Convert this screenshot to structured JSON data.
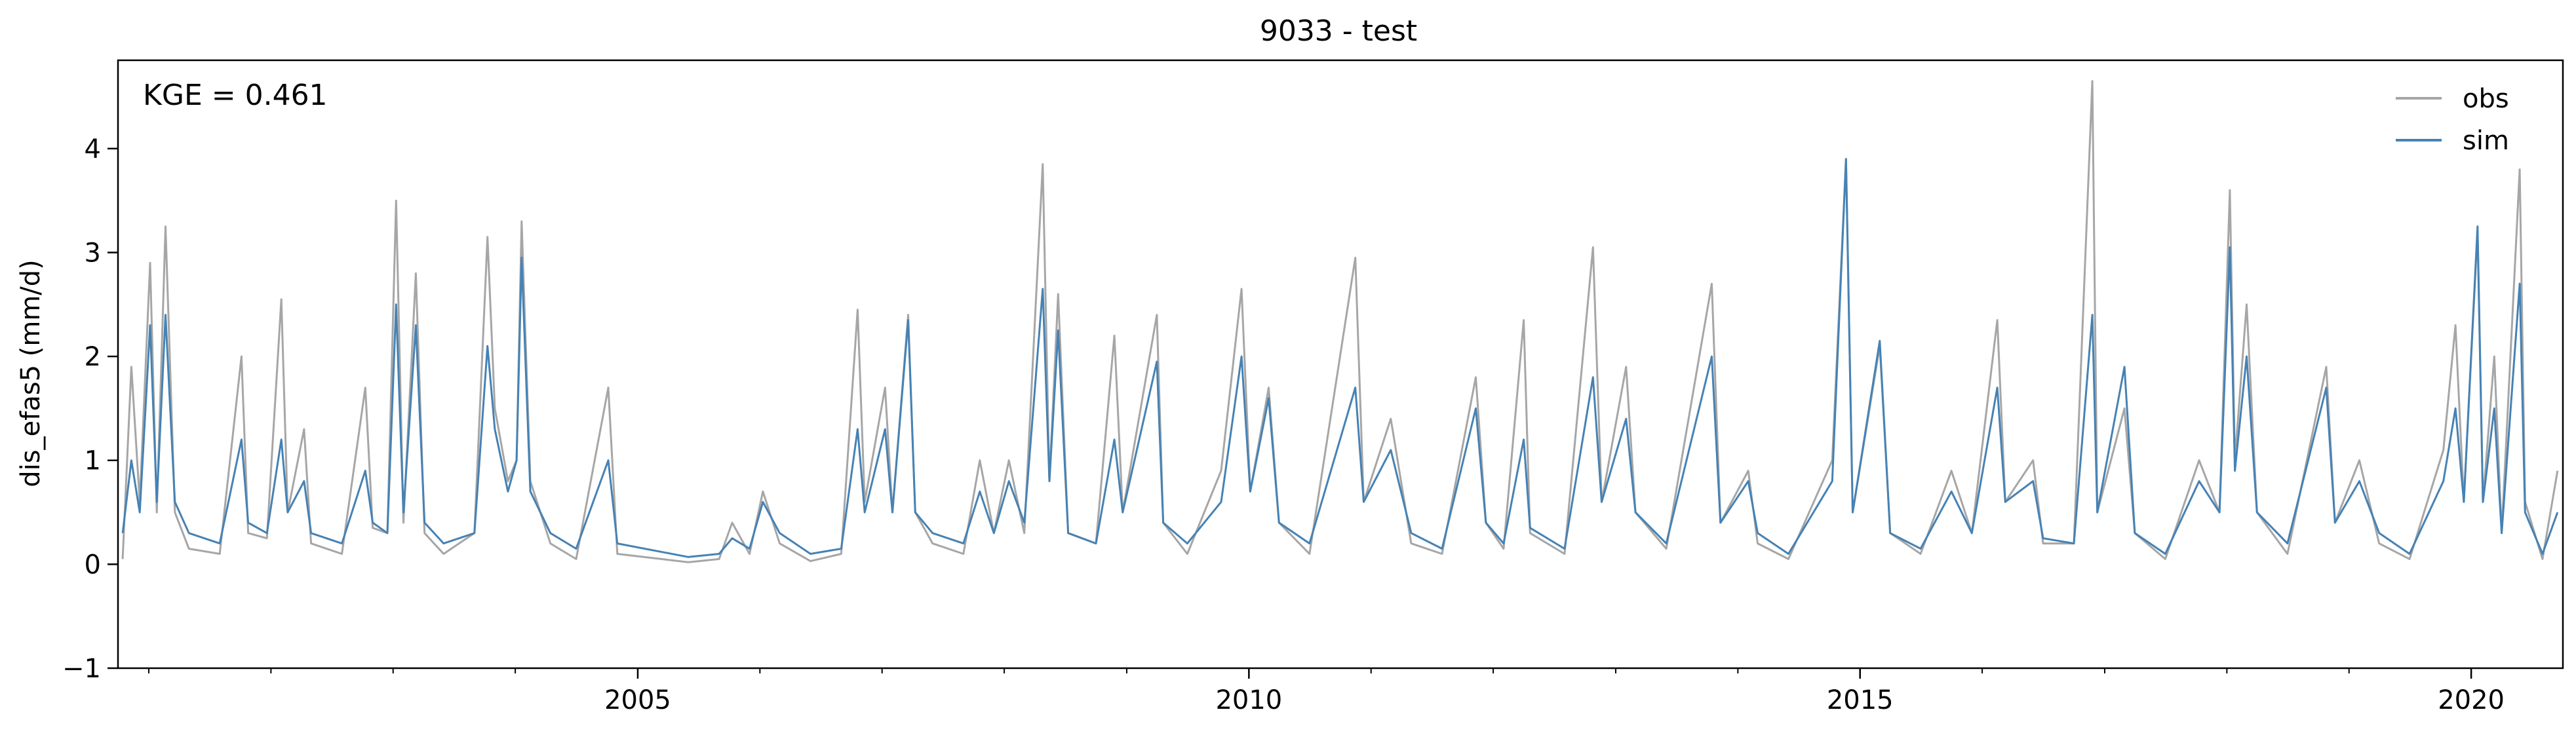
{
  "chart_data": {
    "type": "line",
    "title": "9033 - test",
    "xlabel": "",
    "ylabel": "dis_efas5 (mm/d)",
    "annotation": "KGE = 0.461",
    "xlim": [
      "2000-10-01",
      "2020-10-01"
    ],
    "ylim": [
      -1,
      4.85
    ],
    "x_ticks": [
      {
        "date": "2005-01-01",
        "label": "2005"
      },
      {
        "date": "2010-01-01",
        "label": "2010"
      },
      {
        "date": "2015-01-01",
        "label": "2015"
      },
      {
        "date": "2020-01-01",
        "label": "2020"
      }
    ],
    "y_ticks": [
      {
        "value": -1,
        "label": "−1"
      },
      {
        "value": 0,
        "label": "0"
      },
      {
        "value": 1,
        "label": "1"
      },
      {
        "value": 2,
        "label": "2"
      },
      {
        "value": 3,
        "label": "3"
      },
      {
        "value": 4,
        "label": "4"
      }
    ],
    "legend": {
      "position": "top-right"
    },
    "grid": false,
    "series": [
      {
        "name": "obs",
        "color": "#a6a6a6",
        "points": [
          [
            "2000-10-15",
            0.05
          ],
          [
            "2000-11-10",
            1.9
          ],
          [
            "2000-12-05",
            0.6
          ],
          [
            "2001-01-05",
            2.9
          ],
          [
            "2001-01-25",
            0.5
          ],
          [
            "2001-02-20",
            3.25
          ],
          [
            "2001-03-20",
            0.5
          ],
          [
            "2001-05-01",
            0.15
          ],
          [
            "2001-08-01",
            0.1
          ],
          [
            "2001-10-05",
            2.0
          ],
          [
            "2001-10-25",
            0.3
          ],
          [
            "2001-12-20",
            0.25
          ],
          [
            "2002-02-01",
            2.55
          ],
          [
            "2002-02-20",
            0.5
          ],
          [
            "2002-04-10",
            1.3
          ],
          [
            "2002-05-01",
            0.2
          ],
          [
            "2002-08-01",
            0.1
          ],
          [
            "2002-10-10",
            1.7
          ],
          [
            "2002-11-01",
            0.35
          ],
          [
            "2002-12-15",
            0.3
          ],
          [
            "2003-01-10",
            3.5
          ],
          [
            "2003-02-01",
            0.4
          ],
          [
            "2003-03-10",
            2.8
          ],
          [
            "2003-04-05",
            0.3
          ],
          [
            "2003-06-01",
            0.1
          ],
          [
            "2003-09-01",
            0.3
          ],
          [
            "2003-10-10",
            3.15
          ],
          [
            "2003-11-01",
            1.5
          ],
          [
            "2003-12-10",
            0.8
          ],
          [
            "2004-01-05",
            1.0
          ],
          [
            "2004-01-20",
            3.3
          ],
          [
            "2004-02-15",
            0.8
          ],
          [
            "2004-04-15",
            0.2
          ],
          [
            "2004-07-01",
            0.05
          ],
          [
            "2004-10-05",
            1.7
          ],
          [
            "2004-11-01",
            0.1
          ],
          [
            "2005-06-01",
            0.02
          ],
          [
            "2005-09-01",
            0.05
          ],
          [
            "2005-10-10",
            0.4
          ],
          [
            "2005-12-01",
            0.1
          ],
          [
            "2006-01-10",
            0.7
          ],
          [
            "2006-03-01",
            0.2
          ],
          [
            "2006-06-01",
            0.03
          ],
          [
            "2006-09-01",
            0.1
          ],
          [
            "2006-10-20",
            2.45
          ],
          [
            "2006-11-10",
            0.6
          ],
          [
            "2007-01-10",
            1.7
          ],
          [
            "2007-02-01",
            0.5
          ],
          [
            "2007-03-20",
            2.4
          ],
          [
            "2007-04-10",
            0.5
          ],
          [
            "2007-06-01",
            0.2
          ],
          [
            "2007-09-01",
            0.1
          ],
          [
            "2007-10-20",
            1.0
          ],
          [
            "2007-12-01",
            0.3
          ],
          [
            "2008-01-15",
            1.0
          ],
          [
            "2008-03-01",
            0.3
          ],
          [
            "2008-04-25",
            3.85
          ],
          [
            "2008-05-15",
            0.8
          ],
          [
            "2008-06-10",
            2.6
          ],
          [
            "2008-07-10",
            0.3
          ],
          [
            "2008-10-01",
            0.2
          ],
          [
            "2008-11-25",
            2.2
          ],
          [
            "2008-12-20",
            0.5
          ],
          [
            "2009-04-01",
            2.4
          ],
          [
            "2009-04-20",
            0.4
          ],
          [
            "2009-07-01",
            0.1
          ],
          [
            "2009-10-10",
            0.9
          ],
          [
            "2009-12-10",
            2.65
          ],
          [
            "2010-01-05",
            0.7
          ],
          [
            "2010-03-01",
            1.7
          ],
          [
            "2010-04-01",
            0.4
          ],
          [
            "2010-07-01",
            0.1
          ],
          [
            "2010-11-15",
            2.95
          ],
          [
            "2010-12-10",
            0.6
          ],
          [
            "2011-03-01",
            1.4
          ],
          [
            "2011-05-01",
            0.2
          ],
          [
            "2011-08-01",
            0.1
          ],
          [
            "2011-11-10",
            1.8
          ],
          [
            "2011-12-10",
            0.4
          ],
          [
            "2012-02-01",
            0.15
          ],
          [
            "2012-04-01",
            2.35
          ],
          [
            "2012-04-20",
            0.3
          ],
          [
            "2012-08-01",
            0.1
          ],
          [
            "2012-10-25",
            3.05
          ],
          [
            "2012-11-20",
            0.6
          ],
          [
            "2013-02-01",
            1.9
          ],
          [
            "2013-03-01",
            0.5
          ],
          [
            "2013-06-01",
            0.15
          ],
          [
            "2013-10-15",
            2.7
          ],
          [
            "2013-11-10",
            0.4
          ],
          [
            "2014-02-01",
            0.9
          ],
          [
            "2014-03-01",
            0.2
          ],
          [
            "2014-06-01",
            0.05
          ],
          [
            "2014-10-10",
            1.0
          ],
          [
            "2014-11-20",
            3.9
          ],
          [
            "2014-12-10",
            0.5
          ],
          [
            "2015-03-01",
            2.1
          ],
          [
            "2015-04-01",
            0.3
          ],
          [
            "2015-07-01",
            0.1
          ],
          [
            "2015-10-01",
            0.9
          ],
          [
            "2015-12-01",
            0.3
          ],
          [
            "2016-02-15",
            2.35
          ],
          [
            "2016-03-10",
            0.6
          ],
          [
            "2016-06-01",
            1.0
          ],
          [
            "2016-07-01",
            0.2
          ],
          [
            "2016-10-01",
            0.2
          ],
          [
            "2016-11-25",
            4.65
          ],
          [
            "2016-12-10",
            0.5
          ],
          [
            "2017-03-01",
            1.5
          ],
          [
            "2017-04-01",
            0.3
          ],
          [
            "2017-07-01",
            0.05
          ],
          [
            "2017-10-10",
            1.0
          ],
          [
            "2017-12-10",
            0.5
          ],
          [
            "2018-01-10",
            3.6
          ],
          [
            "2018-01-25",
            1.0
          ],
          [
            "2018-03-01",
            2.5
          ],
          [
            "2018-04-01",
            0.5
          ],
          [
            "2018-07-01",
            0.1
          ],
          [
            "2018-10-25",
            1.9
          ],
          [
            "2018-11-20",
            0.4
          ],
          [
            "2019-02-01",
            1.0
          ],
          [
            "2019-04-01",
            0.2
          ],
          [
            "2019-07-01",
            0.05
          ],
          [
            "2019-10-10",
            1.1
          ],
          [
            "2019-11-15",
            2.3
          ],
          [
            "2019-12-10",
            0.6
          ],
          [
            "2020-01-20",
            3.2
          ],
          [
            "2020-02-05",
            0.6
          ],
          [
            "2020-03-10",
            2.0
          ],
          [
            "2020-04-01",
            0.3
          ],
          [
            "2020-05-25",
            3.8
          ],
          [
            "2020-06-10",
            0.6
          ],
          [
            "2020-08-01",
            0.05
          ],
          [
            "2020-09-15",
            0.9
          ]
        ]
      },
      {
        "name": "sim",
        "color": "#4682b4",
        "points": [
          [
            "2000-10-15",
            0.3
          ],
          [
            "2000-11-10",
            1.0
          ],
          [
            "2000-12-05",
            0.5
          ],
          [
            "2001-01-05",
            2.3
          ],
          [
            "2001-01-25",
            0.6
          ],
          [
            "2001-02-20",
            2.4
          ],
          [
            "2001-03-20",
            0.6
          ],
          [
            "2001-05-01",
            0.3
          ],
          [
            "2001-08-01",
            0.2
          ],
          [
            "2001-10-05",
            1.2
          ],
          [
            "2001-10-25",
            0.4
          ],
          [
            "2001-12-20",
            0.3
          ],
          [
            "2002-02-01",
            1.2
          ],
          [
            "2002-02-20",
            0.5
          ],
          [
            "2002-04-10",
            0.8
          ],
          [
            "2002-05-01",
            0.3
          ],
          [
            "2002-08-01",
            0.2
          ],
          [
            "2002-10-10",
            0.9
          ],
          [
            "2002-11-01",
            0.4
          ],
          [
            "2002-12-15",
            0.3
          ],
          [
            "2003-01-10",
            2.5
          ],
          [
            "2003-02-01",
            0.5
          ],
          [
            "2003-03-10",
            2.3
          ],
          [
            "2003-04-05",
            0.4
          ],
          [
            "2003-06-01",
            0.2
          ],
          [
            "2003-09-01",
            0.3
          ],
          [
            "2003-10-10",
            2.1
          ],
          [
            "2003-11-01",
            1.3
          ],
          [
            "2003-12-10",
            0.7
          ],
          [
            "2004-01-05",
            1.0
          ],
          [
            "2004-01-20",
            2.95
          ],
          [
            "2004-02-15",
            0.7
          ],
          [
            "2004-04-15",
            0.3
          ],
          [
            "2004-07-01",
            0.15
          ],
          [
            "2004-10-05",
            1.0
          ],
          [
            "2004-11-01",
            0.2
          ],
          [
            "2005-06-01",
            0.07
          ],
          [
            "2005-09-01",
            0.1
          ],
          [
            "2005-10-10",
            0.25
          ],
          [
            "2005-12-01",
            0.15
          ],
          [
            "2006-01-10",
            0.6
          ],
          [
            "2006-03-01",
            0.3
          ],
          [
            "2006-06-01",
            0.1
          ],
          [
            "2006-09-01",
            0.15
          ],
          [
            "2006-10-20",
            1.3
          ],
          [
            "2006-11-10",
            0.5
          ],
          [
            "2007-01-10",
            1.3
          ],
          [
            "2007-02-01",
            0.5
          ],
          [
            "2007-03-20",
            2.35
          ],
          [
            "2007-04-10",
            0.5
          ],
          [
            "2007-06-01",
            0.3
          ],
          [
            "2007-09-01",
            0.2
          ],
          [
            "2007-10-20",
            0.7
          ],
          [
            "2007-12-01",
            0.3
          ],
          [
            "2008-01-15",
            0.8
          ],
          [
            "2008-03-01",
            0.4
          ],
          [
            "2008-04-25",
            2.65
          ],
          [
            "2008-05-15",
            0.8
          ],
          [
            "2008-06-10",
            2.25
          ],
          [
            "2008-07-10",
            0.3
          ],
          [
            "2008-10-01",
            0.2
          ],
          [
            "2008-11-25",
            1.2
          ],
          [
            "2008-12-20",
            0.5
          ],
          [
            "2009-04-01",
            1.95
          ],
          [
            "2009-04-20",
            0.4
          ],
          [
            "2009-07-01",
            0.2
          ],
          [
            "2009-10-10",
            0.6
          ],
          [
            "2009-12-10",
            2.0
          ],
          [
            "2010-01-05",
            0.7
          ],
          [
            "2010-03-01",
            1.6
          ],
          [
            "2010-04-01",
            0.4
          ],
          [
            "2010-07-01",
            0.2
          ],
          [
            "2010-11-15",
            1.7
          ],
          [
            "2010-12-10",
            0.6
          ],
          [
            "2011-03-01",
            1.1
          ],
          [
            "2011-05-01",
            0.3
          ],
          [
            "2011-08-01",
            0.15
          ],
          [
            "2011-11-10",
            1.5
          ],
          [
            "2011-12-10",
            0.4
          ],
          [
            "2012-02-01",
            0.2
          ],
          [
            "2012-04-01",
            1.2
          ],
          [
            "2012-04-20",
            0.35
          ],
          [
            "2012-08-01",
            0.15
          ],
          [
            "2012-10-25",
            1.8
          ],
          [
            "2012-11-20",
            0.6
          ],
          [
            "2013-02-01",
            1.4
          ],
          [
            "2013-03-01",
            0.5
          ],
          [
            "2013-06-01",
            0.2
          ],
          [
            "2013-10-15",
            2.0
          ],
          [
            "2013-11-10",
            0.4
          ],
          [
            "2014-02-01",
            0.8
          ],
          [
            "2014-03-01",
            0.3
          ],
          [
            "2014-06-01",
            0.1
          ],
          [
            "2014-10-10",
            0.8
          ],
          [
            "2014-11-20",
            3.9
          ],
          [
            "2014-12-10",
            0.5
          ],
          [
            "2015-03-01",
            2.15
          ],
          [
            "2015-04-01",
            0.3
          ],
          [
            "2015-07-01",
            0.15
          ],
          [
            "2015-10-01",
            0.7
          ],
          [
            "2015-12-01",
            0.3
          ],
          [
            "2016-02-15",
            1.7
          ],
          [
            "2016-03-10",
            0.6
          ],
          [
            "2016-06-01",
            0.8
          ],
          [
            "2016-07-01",
            0.25
          ],
          [
            "2016-10-01",
            0.2
          ],
          [
            "2016-11-25",
            2.4
          ],
          [
            "2016-12-10",
            0.5
          ],
          [
            "2017-03-01",
            1.9
          ],
          [
            "2017-04-01",
            0.3
          ],
          [
            "2017-07-01",
            0.1
          ],
          [
            "2017-10-10",
            0.8
          ],
          [
            "2017-12-10",
            0.5
          ],
          [
            "2018-01-10",
            3.05
          ],
          [
            "2018-01-25",
            0.9
          ],
          [
            "2018-03-01",
            2.0
          ],
          [
            "2018-04-01",
            0.5
          ],
          [
            "2018-07-01",
            0.2
          ],
          [
            "2018-10-25",
            1.7
          ],
          [
            "2018-11-20",
            0.4
          ],
          [
            "2019-02-01",
            0.8
          ],
          [
            "2019-04-01",
            0.3
          ],
          [
            "2019-07-01",
            0.1
          ],
          [
            "2019-10-10",
            0.8
          ],
          [
            "2019-11-15",
            1.5
          ],
          [
            "2019-12-10",
            0.6
          ],
          [
            "2020-01-20",
            3.25
          ],
          [
            "2020-02-05",
            0.6
          ],
          [
            "2020-03-10",
            1.5
          ],
          [
            "2020-04-01",
            0.3
          ],
          [
            "2020-05-25",
            2.7
          ],
          [
            "2020-06-10",
            0.5
          ],
          [
            "2020-08-01",
            0.1
          ],
          [
            "2020-09-15",
            0.5
          ]
        ]
      }
    ]
  }
}
